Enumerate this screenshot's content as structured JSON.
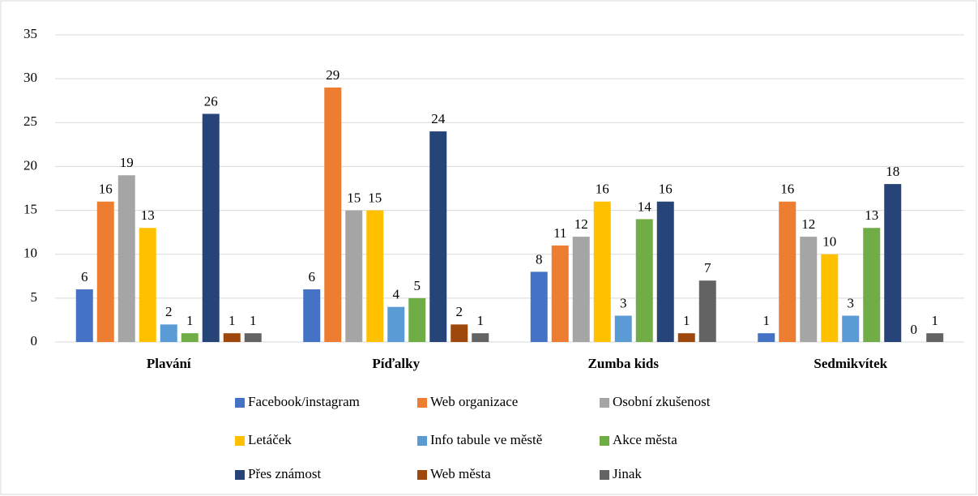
{
  "chart_data": {
    "type": "bar",
    "categories": [
      "Plavání",
      "Píďalky",
      "Zumba kids",
      "Sedmikvítek"
    ],
    "series": [
      {
        "name": "Facebook/instagram",
        "color": "#4472c4",
        "values": [
          6,
          6,
          8,
          1
        ]
      },
      {
        "name": "Web organizace",
        "color": "#ed7d31",
        "values": [
          16,
          29,
          11,
          16
        ]
      },
      {
        "name": "Osobní zkušenost",
        "color": "#a5a5a5",
        "values": [
          19,
          15,
          12,
          12
        ]
      },
      {
        "name": "Letáček",
        "color": "#ffc000",
        "values": [
          13,
          15,
          16,
          10
        ]
      },
      {
        "name": "Info tabule ve městě",
        "color": "#5b9bd5",
        "values": [
          2,
          4,
          3,
          3
        ]
      },
      {
        "name": "Akce města",
        "color": "#70ad47",
        "values": [
          1,
          5,
          14,
          13
        ]
      },
      {
        "name": "Přes známost",
        "color": "#264478",
        "values": [
          26,
          24,
          16,
          18
        ]
      },
      {
        "name": "Web města",
        "color": "#9e480e",
        "values": [
          1,
          2,
          1,
          0
        ]
      },
      {
        "name": "Jinak",
        "color": "#636363",
        "values": [
          1,
          1,
          7,
          1
        ]
      }
    ],
    "ylim": [
      0,
      35
    ],
    "yticks": [
      0,
      5,
      10,
      15,
      20,
      25,
      30,
      35
    ],
    "grid": true,
    "legend": "bottom"
  }
}
